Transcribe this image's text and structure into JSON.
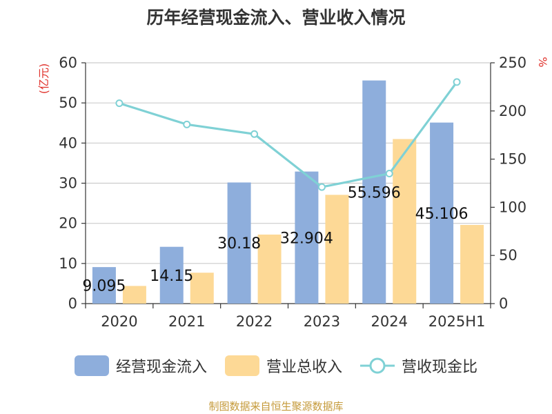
{
  "title": "历年经营现金流入、营业收入情况",
  "source": "制图数据来自恒生聚源数据库",
  "colors": {
    "cash_inflow": "#8eaedc",
    "revenue": "#fdd996",
    "ratio": "#7fd1d5",
    "left_unit": "#e0302a",
    "right_unit": "#e0302a",
    "axis": "#333333",
    "grid": "#cccccc"
  },
  "chart_data": {
    "type": "bar",
    "categories": [
      "2020",
      "2021",
      "2022",
      "2023",
      "2024",
      "2025H1"
    ],
    "series": [
      {
        "name": "经营现金流入",
        "type": "bar",
        "axis": "left",
        "values": [
          9.095,
          14.15,
          30.18,
          32.904,
          55.596,
          45.106
        ],
        "labels": [
          "9.095",
          "14.15",
          "30.18",
          "32.904",
          "55.596",
          "45.106"
        ]
      },
      {
        "name": "营业总收入",
        "type": "bar",
        "axis": "left",
        "values": [
          4.4,
          7.7,
          17.2,
          27.1,
          41.0,
          19.6
        ]
      },
      {
        "name": "营收现金比",
        "type": "line",
        "axis": "right",
        "values": [
          208,
          186,
          176,
          121,
          135,
          230
        ]
      }
    ],
    "y_left": {
      "unit": "(亿元)",
      "min": 0,
      "max": 60,
      "ticks": [
        0,
        10,
        20,
        30,
        40,
        50,
        60
      ]
    },
    "y_right": {
      "unit": "%",
      "min": 0,
      "max": 250,
      "ticks": [
        0,
        50,
        100,
        150,
        200,
        250
      ]
    },
    "grid": true,
    "legend_position": "bottom"
  }
}
